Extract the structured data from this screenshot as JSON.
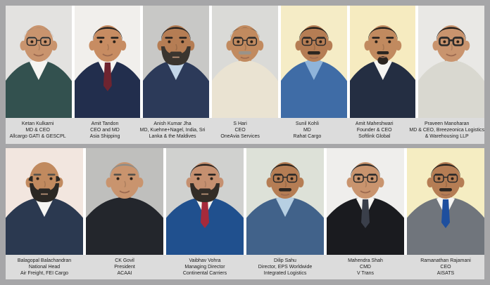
{
  "collage": {
    "frame_color": "#a6a6a8",
    "gap_color": "#ffffff",
    "caption_bg": "#dcdcdc",
    "caption_text_color": "#1c1c1c"
  },
  "rows": [
    {
      "people": [
        {
          "name": "Ketan Kulkarni",
          "lines": [
            "MD & CEO",
            "Allcargo GATI & GESCPL"
          ],
          "appearance": {
            "bg": "#e3e2e0",
            "skin": "#c9946e",
            "hair": "#7a7a78",
            "hairStyle": "receding",
            "glasses": true,
            "facial": "none",
            "suit": "#33514f",
            "shirt": "#f5f4f1",
            "tie": null
          }
        },
        {
          "name": "Amit Tandon",
          "lines": [
            "CEO and MD",
            "Asia Shipping"
          ],
          "appearance": {
            "bg": "#f1efec",
            "skin": "#c78c62",
            "hair": "#23201e",
            "hairStyle": "full",
            "glasses": false,
            "facial": "none",
            "suit": "#222e4d",
            "shirt": "#f7f6f3",
            "tie": "#6e2430"
          }
        },
        {
          "name": "Anish Kumar Jha",
          "lines": [
            "MD, Kuehne+Nagel, India, Sri",
            "Lanka & the Maldives"
          ],
          "appearance": {
            "bg": "#c8c8c6",
            "skin": "#b57d54",
            "hair": "#26221f",
            "hairStyle": "full",
            "glasses": false,
            "facial": "beard",
            "facialColor": "#3a352f",
            "suit": "#2c3a59",
            "shirt": "#c3d6e8",
            "tie": null
          }
        },
        {
          "name": "S Hari",
          "lines": [
            "CEO",
            "OneAvia Services"
          ],
          "appearance": {
            "bg": "#dadad7",
            "skin": "#c18a5f",
            "hair": "#34302c",
            "hairStyle": "receding",
            "glasses": true,
            "facial": "mustache",
            "facialColor": "#9a938a",
            "suit": "#eae3d2",
            "shirt": null,
            "tie": null
          }
        },
        {
          "name": "Sunil Kohli",
          "lines": [
            "MD",
            "Rahat Cargo"
          ],
          "appearance": {
            "bg": "#f5ecc6",
            "skin": "#b57d54",
            "hair": "#201d1a",
            "hairStyle": "full",
            "glasses": true,
            "facial": "mustache",
            "facialColor": "#2b2520",
            "suit": "#3f6ca6",
            "shirt": "#8fb4da",
            "tie": null
          }
        },
        {
          "name": "Amit Maheshwari",
          "lines": [
            "Founder & CEO",
            "Softlink Global"
          ],
          "appearance": {
            "bg": "#f6ebc0",
            "skin": "#c18a5f",
            "hair": "#221f1c",
            "hairStyle": "full",
            "glasses": false,
            "facial": "goatee",
            "facialColor": "#2b2520",
            "suit": "#242e42",
            "shirt": "#f6f5f2",
            "tie": null
          }
        },
        {
          "name": "Praveen Manoharan",
          "lines": [
            "MD & CEO, Breezeonica Logistics",
            "& Warehousing LLP"
          ],
          "appearance": {
            "bg": "#e9e8e5",
            "skin": "#c9946e",
            "hair": "#1f1c1a",
            "hairStyle": "full",
            "glasses": true,
            "bigGlasses": true,
            "facial": "none",
            "suit": "#d9d8d0",
            "shirt": null,
            "tie": null
          }
        }
      ]
    },
    {
      "people": [
        {
          "name": "Balagopal Balachandran",
          "lines": [
            "National Head",
            "Air Freight, FEI Cargo"
          ],
          "appearance": {
            "bg": "#f2e6df",
            "skin": "#c18a5f",
            "hair": "#2b2824",
            "hairStyle": "bald",
            "glasses": false,
            "facial": "beard",
            "facialColor": "#2b2824",
            "suit": "#2b3950",
            "shirt": "#f6f5f2",
            "tie": null
          }
        },
        {
          "name": "CK Govil",
          "lines": [
            "President",
            "ACAAI"
          ],
          "appearance": {
            "bg": "#bfbfbd",
            "skin": "#c9946e",
            "hair": "#8c8c88",
            "hairStyle": "full",
            "glasses": false,
            "facial": "none",
            "suit": "#23262c",
            "shirt": null,
            "tie": null
          }
        },
        {
          "name": "Vaibhav Vohra",
          "lines": [
            "Managing Director",
            "Continental Carriers"
          ],
          "appearance": {
            "bg": "#d0d1cf",
            "skin": "#c59070",
            "hair": "#26221f",
            "hairStyle": "full",
            "glasses": false,
            "facial": "beard",
            "facialColor": "#332d27",
            "suit": "#20508e",
            "shirt": "#f6f5f2",
            "tie": "#a62a3b"
          }
        },
        {
          "name": "Dilip Sahu",
          "lines": [
            "Director, EPS Worldwide",
            "Integrated Logistics"
          ],
          "appearance": {
            "bg": "#dde1d8",
            "skin": "#b57d54",
            "hair": "#24211e",
            "hairStyle": "full",
            "glasses": true,
            "facial": "mustache",
            "facialColor": "#2b2520",
            "suit": "#41628a",
            "shirt": "#b7cfe2",
            "tie": null
          }
        },
        {
          "name": "Mahendra Shah",
          "lines": [
            "CMD",
            "V Trans"
          ],
          "appearance": {
            "bg": "#efeeec",
            "skin": "#c9946e",
            "hair": "#2a2a2a",
            "hairStyle": "full",
            "glasses": true,
            "facial": "none",
            "suit": "#1a1b1f",
            "shirt": "#f6f5f2",
            "tie": "#3a3f4a"
          }
        },
        {
          "name": "Ramanathan Rajamani",
          "lines": [
            "CEO",
            "AISATS"
          ],
          "appearance": {
            "bg": "#f5edc2",
            "skin": "#b57d54",
            "hair": "#26231f",
            "hairStyle": "full",
            "glasses": true,
            "facial": "mustache",
            "facialColor": "#2b2520",
            "suit": "#70757c",
            "shirt": "#f6f5f2",
            "tie": "#1e4f9e"
          }
        }
      ]
    }
  ]
}
